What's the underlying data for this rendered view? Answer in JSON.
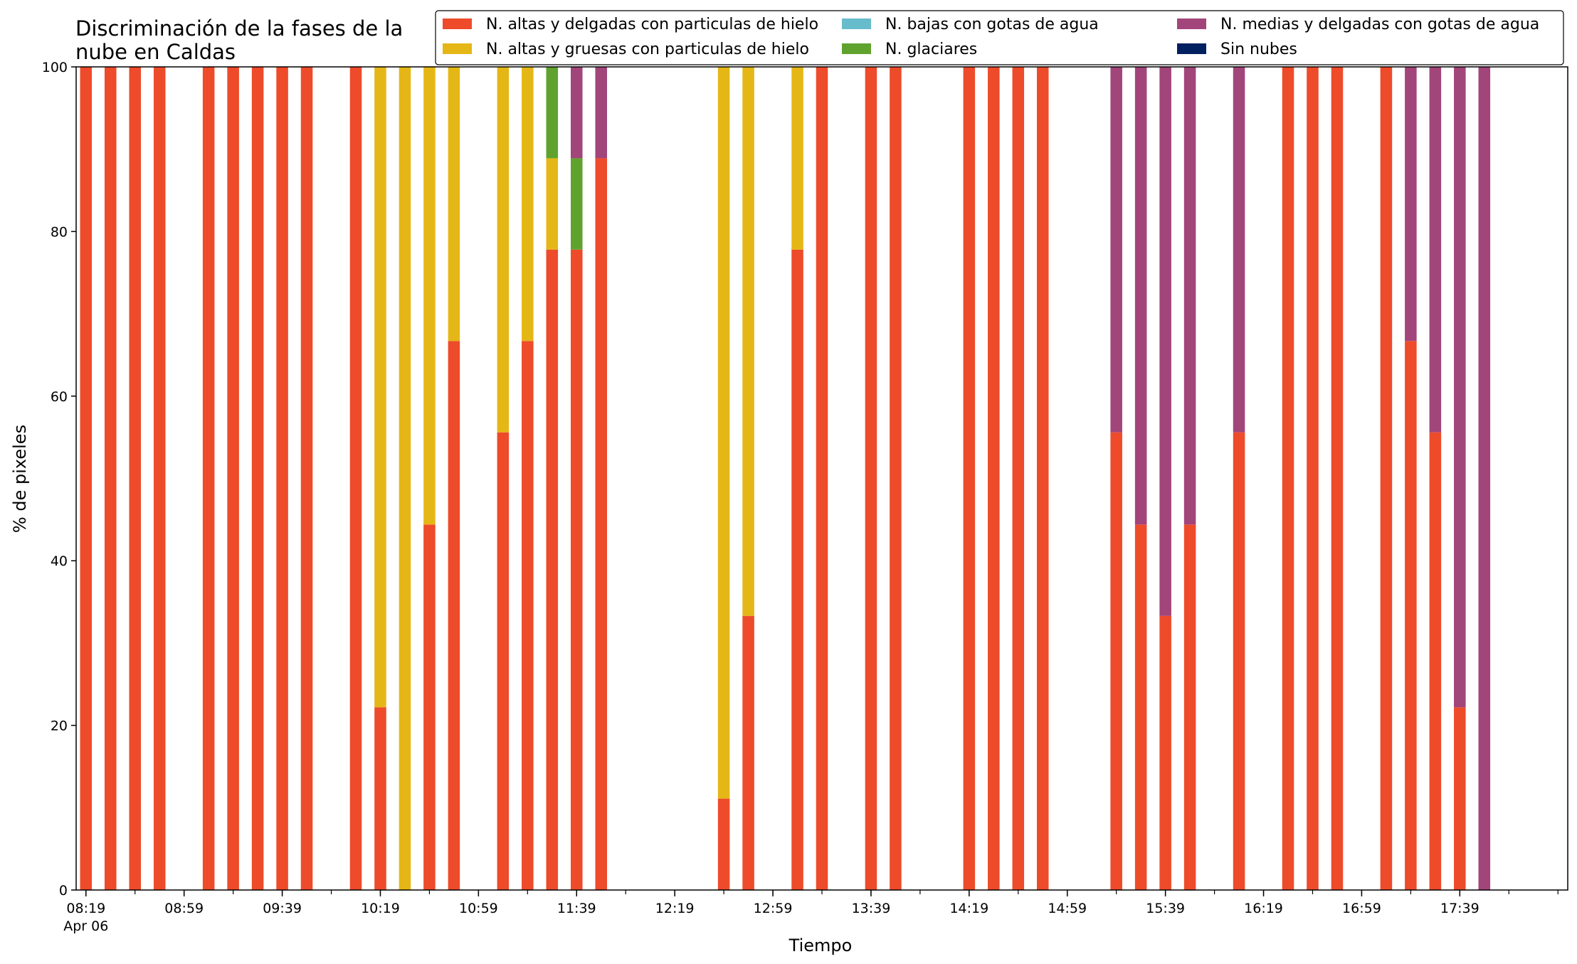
{
  "chart_data": {
    "type": "bar",
    "stacked": true,
    "title_lines": [
      "Discriminación de la fases de la",
      "nube en Caldas"
    ],
    "xlabel": "Tiempo",
    "ylabel": "% de pixeles",
    "ylim": [
      0,
      100
    ],
    "yticks": [
      0,
      20,
      40,
      60,
      80,
      100
    ],
    "x_start": "08:19",
    "x_end": "18:19",
    "interval_minutes": 10,
    "xtick_labels": [
      "08:19",
      "08:59",
      "09:39",
      "10:19",
      "10:59",
      "11:39",
      "12:19",
      "12:59",
      "13:39",
      "14:19",
      "14:59",
      "15:39",
      "16:19",
      "16:59",
      "17:39"
    ],
    "date_label": "Apr 06",
    "grid": false,
    "legend_position": "top-right",
    "series": [
      {
        "name": "N. altas y delgadas con particulas de hielo",
        "color": "#ee4b2b"
      },
      {
        "name": "N. altas y gruesas con particulas de hielo",
        "color": "#e5b716"
      },
      {
        "name": "N. bajas con gotas de agua",
        "color": "#67bccc"
      },
      {
        "name": "N. glaciares",
        "color": "#5fa32e"
      },
      {
        "name": "N. medias y delgadas con gotas de agua",
        "color": "#a2457a"
      },
      {
        "name": "Sin nubes",
        "color": "#002060"
      }
    ],
    "bars": [
      {
        "time": "08:19",
        "values": [
          100,
          0,
          0,
          0,
          0,
          0
        ]
      },
      {
        "time": "08:29",
        "values": [
          100,
          0,
          0,
          0,
          0,
          0
        ]
      },
      {
        "time": "08:39",
        "values": [
          100,
          0,
          0,
          0,
          0,
          0
        ]
      },
      {
        "time": "08:49",
        "values": [
          100,
          0,
          0,
          0,
          0,
          0
        ]
      },
      {
        "time": "09:09",
        "values": [
          100,
          0,
          0,
          0,
          0,
          0
        ]
      },
      {
        "time": "09:19",
        "values": [
          100,
          0,
          0,
          0,
          0,
          0
        ]
      },
      {
        "time": "09:29",
        "values": [
          100,
          0,
          0,
          0,
          0,
          0
        ]
      },
      {
        "time": "09:39",
        "values": [
          100,
          0,
          0,
          0,
          0,
          0
        ]
      },
      {
        "time": "09:49",
        "values": [
          100,
          0,
          0,
          0,
          0,
          0
        ]
      },
      {
        "time": "10:09",
        "values": [
          100,
          0,
          0,
          0,
          0,
          0
        ]
      },
      {
        "time": "10:19",
        "values": [
          22.2,
          77.8,
          0,
          0,
          0,
          0
        ]
      },
      {
        "time": "10:29",
        "values": [
          0,
          100,
          0,
          0,
          0,
          0
        ]
      },
      {
        "time": "10:39",
        "values": [
          44.4,
          55.6,
          0,
          0,
          0,
          0
        ]
      },
      {
        "time": "10:49",
        "values": [
          66.7,
          33.3,
          0,
          0,
          0,
          0
        ]
      },
      {
        "time": "11:09",
        "values": [
          55.6,
          44.4,
          0,
          0,
          0,
          0
        ]
      },
      {
        "time": "11:19",
        "values": [
          66.7,
          33.3,
          0,
          0,
          0,
          0
        ]
      },
      {
        "time": "11:29",
        "values": [
          77.8,
          11.1,
          0,
          11.1,
          0,
          0
        ]
      },
      {
        "time": "11:39",
        "values": [
          77.8,
          0,
          0,
          11.1,
          11.1,
          0
        ]
      },
      {
        "time": "11:49",
        "values": [
          88.9,
          0,
          0,
          0,
          11.1,
          0
        ]
      },
      {
        "time": "12:39",
        "values": [
          11.1,
          88.9,
          0,
          0,
          0,
          0
        ]
      },
      {
        "time": "12:49",
        "values": [
          33.3,
          66.7,
          0,
          0,
          0,
          0
        ]
      },
      {
        "time": "13:09",
        "values": [
          77.8,
          22.2,
          0,
          0,
          0,
          0
        ]
      },
      {
        "time": "13:19",
        "values": [
          100,
          0,
          0,
          0,
          0,
          0
        ]
      },
      {
        "time": "13:39",
        "values": [
          100,
          0,
          0,
          0,
          0,
          0
        ]
      },
      {
        "time": "13:49",
        "values": [
          100,
          0,
          0,
          0,
          0,
          0
        ]
      },
      {
        "time": "14:19",
        "values": [
          100,
          0,
          0,
          0,
          0,
          0
        ]
      },
      {
        "time": "14:29",
        "values": [
          100,
          0,
          0,
          0,
          0,
          0
        ]
      },
      {
        "time": "14:39",
        "values": [
          100,
          0,
          0,
          0,
          0,
          0
        ]
      },
      {
        "time": "14:49",
        "values": [
          100,
          0,
          0,
          0,
          0,
          0
        ]
      },
      {
        "time": "15:19",
        "values": [
          55.6,
          0,
          0,
          0,
          44.4,
          0
        ]
      },
      {
        "time": "15:29",
        "values": [
          44.4,
          0,
          0,
          0,
          55.6,
          0
        ]
      },
      {
        "time": "15:39",
        "values": [
          33.3,
          0,
          0,
          0,
          66.7,
          0
        ]
      },
      {
        "time": "15:49",
        "values": [
          44.4,
          0,
          0,
          0,
          55.6,
          0
        ]
      },
      {
        "time": "16:09",
        "values": [
          55.6,
          0,
          0,
          0,
          44.4,
          0
        ]
      },
      {
        "time": "16:29",
        "values": [
          100,
          0,
          0,
          0,
          0,
          0
        ]
      },
      {
        "time": "16:39",
        "values": [
          100,
          0,
          0,
          0,
          0,
          0
        ]
      },
      {
        "time": "16:49",
        "values": [
          100,
          0,
          0,
          0,
          0,
          0
        ]
      },
      {
        "time": "17:09",
        "values": [
          100,
          0,
          0,
          0,
          0,
          0
        ]
      },
      {
        "time": "17:19",
        "values": [
          66.7,
          0,
          0,
          0,
          33.3,
          0
        ]
      },
      {
        "time": "17:29",
        "values": [
          55.6,
          0,
          0,
          0,
          44.4,
          0
        ]
      },
      {
        "time": "17:39",
        "values": [
          22.2,
          0,
          0,
          0,
          77.8,
          0
        ]
      },
      {
        "time": "17:49",
        "values": [
          0,
          0,
          0,
          0,
          100,
          0
        ]
      }
    ]
  }
}
